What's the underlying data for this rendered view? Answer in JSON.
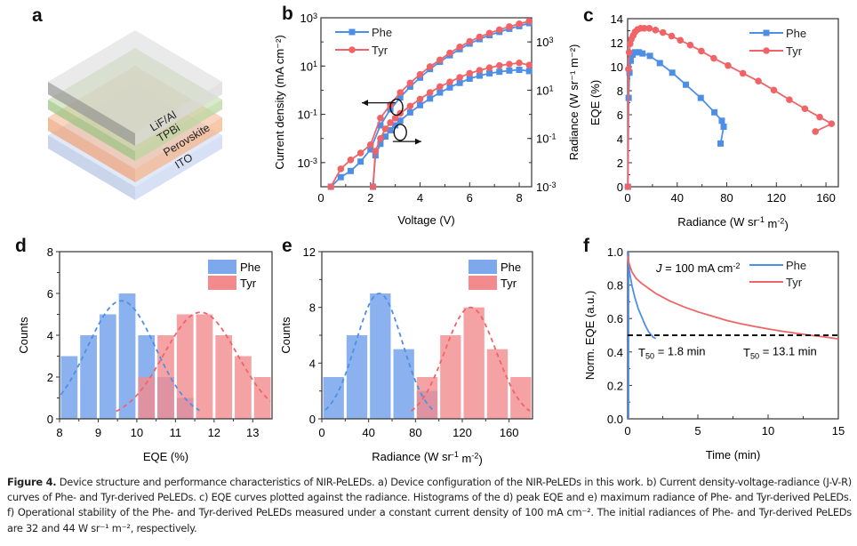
{
  "panels": {
    "a": {
      "letter": "a",
      "layers": [
        {
          "name": "LiF/Al",
          "color": "#d9d9d9"
        },
        {
          "name": "TPBi",
          "color": "#b9d7a0"
        },
        {
          "name": "Perovskite",
          "color": "#f4b58e"
        },
        {
          "name": "ITO",
          "color": "#c9d6f0"
        }
      ]
    },
    "b": {
      "letter": "b"
    },
    "c": {
      "letter": "c"
    },
    "d": {
      "letter": "d"
    },
    "e": {
      "letter": "e"
    },
    "f": {
      "letter": "f"
    }
  },
  "colors": {
    "phe": "#4d8fe6",
    "tyr": "#f06468",
    "phe_fill": "#7ea8ec",
    "tyr_fill": "#f28b8e"
  },
  "chart_data": [
    {
      "id": "b",
      "type": "line",
      "title": "",
      "xlabel": "Voltage (V)",
      "ylabel": "Current density (mA cm⁻²)",
      "y2label": "Radiance (W sr⁻¹ m⁻²)",
      "xlim": [
        0,
        8.5
      ],
      "xticks": [
        0,
        2,
        4,
        6,
        8
      ],
      "ylim_log": [
        -4,
        3
      ],
      "yticks": [
        "10^3",
        "10^1",
        "10^-1",
        "10^-3"
      ],
      "y2lim_log": [
        -3,
        4
      ],
      "y2ticks": [
        "10^3",
        "10^1",
        "10^-1",
        "10^-3"
      ],
      "legend": [
        "Phe",
        "Tyr"
      ],
      "legend_position": "top-left",
      "series": [
        {
          "name": "Phe",
          "axis": "left",
          "marker": "square",
          "x": [
            0.4,
            0.8,
            1.2,
            1.6,
            2.0,
            2.4,
            2.8,
            3.2,
            3.6,
            4.0,
            4.4,
            4.8,
            5.2,
            5.6,
            6.0,
            6.4,
            6.8,
            7.2,
            7.6,
            8.0,
            8.4
          ],
          "y": [
            0.0001,
            0.00025,
            0.00045,
            0.0011,
            0.0035,
            0.035,
            0.16,
            0.5,
            1.4,
            3.3,
            7.5,
            15,
            28,
            50,
            85,
            130,
            190,
            260,
            350,
            450,
            600
          ]
        },
        {
          "name": "Tyr",
          "axis": "left",
          "marker": "circle",
          "x": [
            0.4,
            0.8,
            1.2,
            1.6,
            2.0,
            2.4,
            2.8,
            3.2,
            3.6,
            4.0,
            4.4,
            4.8,
            5.2,
            5.6,
            6.0,
            6.4,
            6.8,
            7.2,
            7.6,
            8.0,
            8.4
          ],
          "y": [
            0.0001,
            0.00055,
            0.0013,
            0.0025,
            0.0055,
            0.07,
            0.25,
            0.8,
            2.0,
            4.5,
            9.5,
            18,
            35,
            62,
            105,
            160,
            230,
            320,
            430,
            560,
            720
          ]
        },
        {
          "name": "Phe",
          "axis": "right",
          "marker": "square",
          "x": [
            2.1,
            2.2,
            2.4,
            2.6,
            2.8,
            3.0,
            3.2,
            3.6,
            4.0,
            4.4,
            4.8,
            5.2,
            5.6,
            6.0,
            6.4,
            6.8,
            7.2,
            7.6,
            8.0,
            8.4
          ],
          "y": [
            0.001,
            0.02,
            0.06,
            0.12,
            0.22,
            0.35,
            0.55,
            1.2,
            2.4,
            4.5,
            8,
            13,
            20,
            30,
            40,
            50,
            58,
            65,
            70,
            62
          ]
        },
        {
          "name": "Tyr",
          "axis": "right",
          "marker": "circle",
          "x": [
            2.1,
            2.2,
            2.4,
            2.6,
            2.8,
            3.0,
            3.2,
            3.6,
            4.0,
            4.4,
            4.8,
            5.2,
            5.6,
            6.0,
            6.4,
            6.8,
            7.2,
            7.6,
            8.0,
            8.4
          ],
          "y": [
            0.001,
            0.03,
            0.1,
            0.25,
            0.45,
            0.7,
            1.1,
            2.2,
            4.3,
            8,
            14,
            22,
            34,
            50,
            67,
            85,
            105,
            120,
            135,
            110
          ]
        }
      ]
    },
    {
      "id": "c",
      "type": "line",
      "xlabel": "Radiance (W sr⁻¹ m⁻²)",
      "ylabel": "EQE (%)",
      "xlim": [
        0,
        170
      ],
      "xticks": [
        0,
        40,
        80,
        120,
        160
      ],
      "ylim": [
        0,
        14
      ],
      "yticks": [
        0,
        2,
        4,
        6,
        8,
        10,
        12,
        14
      ],
      "legend": [
        "Phe",
        "Tyr"
      ],
      "legend_position": "top-right",
      "series": [
        {
          "name": "Phe",
          "marker": "square",
          "x": [
            0.2,
            0.8,
            1.5,
            2.5,
            4,
            6,
            9,
            12,
            18,
            26,
            36,
            47,
            59,
            70,
            76,
            77.5,
            75
          ],
          "y": [
            0,
            7.4,
            9.5,
            10.5,
            11.0,
            11.2,
            11.2,
            11.1,
            10.9,
            10.3,
            9.5,
            8.5,
            7.4,
            6.2,
            5.5,
            5.0,
            3.6
          ]
        },
        {
          "name": "Tyr",
          "marker": "circle",
          "x": [
            0.2,
            0.6,
            1.2,
            2,
            3,
            4.5,
            6,
            8,
            10.5,
            13.5,
            17.5,
            22.5,
            28.5,
            35.5,
            42.5,
            50.5,
            59.5,
            69.5,
            81,
            93,
            105.5,
            118,
            130.5,
            143,
            155,
            164.5,
            151.5
          ],
          "y": [
            0,
            9.8,
            11.2,
            11.9,
            12.3,
            12.6,
            12.9,
            13.1,
            13.2,
            13.2,
            13.2,
            13.05,
            12.85,
            12.55,
            12.2,
            11.8,
            11.3,
            10.7,
            10.1,
            9.45,
            8.8,
            8.05,
            7.25,
            6.5,
            5.8,
            5.25,
            4.6
          ]
        }
      ]
    },
    {
      "id": "d",
      "type": "bar",
      "xlabel": "EQE (%)",
      "ylabel": "Counts",
      "xlim": [
        8,
        13.5
      ],
      "xticks": [
        8,
        9,
        10,
        11,
        12,
        13
      ],
      "ylim": [
        0,
        8
      ],
      "yticks": [
        0,
        2,
        4,
        6,
        8
      ],
      "bin_width": 0.5,
      "legend": [
        "Phe",
        "Tyr"
      ],
      "legend_position": "top-right",
      "series": [
        {
          "name": "Phe",
          "bin_centers": [
            8.25,
            8.75,
            9.25,
            9.75,
            10.25,
            10.75,
            11.25,
            11.75
          ],
          "values": [
            3,
            4,
            5,
            6,
            4,
            2,
            1,
            0
          ],
          "fit": {
            "mean": 9.6,
            "sigma": 0.88,
            "amplitude": 5.65
          }
        },
        {
          "name": "Tyr",
          "bin_centers": [
            10.25,
            10.75,
            11.25,
            11.75,
            12.25,
            12.75,
            13.25
          ],
          "values": [
            2,
            4,
            5,
            5,
            4,
            3,
            2
          ],
          "fit": {
            "mean": 11.65,
            "sigma": 0.95,
            "amplitude": 5.1
          }
        }
      ]
    },
    {
      "id": "e",
      "type": "bar",
      "xlabel": "Radiance (W sr⁻¹ m⁻²)",
      "ylabel": "Counts",
      "xlim": [
        0,
        180
      ],
      "xticks": [
        0,
        40,
        80,
        120,
        160
      ],
      "ylim": [
        0,
        12
      ],
      "yticks": [
        0,
        4,
        8,
        12
      ],
      "bin_width": 20,
      "legend": [
        "Phe",
        "Tyr"
      ],
      "legend_position": "top-right",
      "series": [
        {
          "name": "Phe",
          "bin_centers": [
            10,
            30,
            50,
            70,
            90
          ],
          "values": [
            3,
            6,
            9,
            5,
            2
          ],
          "fit": {
            "mean": 49,
            "sigma": 20,
            "amplitude": 9
          }
        },
        {
          "name": "Tyr",
          "bin_centers": [
            90,
            110,
            130,
            150,
            170
          ],
          "values": [
            3,
            6,
            8,
            5,
            3
          ],
          "fit": {
            "mean": 127,
            "sigma": 22,
            "amplitude": 8
          }
        }
      ]
    },
    {
      "id": "f",
      "type": "line",
      "xlabel": "Time (min)",
      "ylabel": "Norm. EQE (a.u.)",
      "xlim": [
        0,
        15
      ],
      "xticks": [
        0,
        5,
        10,
        15
      ],
      "ylim": [
        0,
        1.0
      ],
      "yticks": [
        0.0,
        0.2,
        0.4,
        0.6,
        0.8,
        1.0
      ],
      "legend": [
        "Phe",
        "Tyr"
      ],
      "legend_position": "top-right",
      "annotations": {
        "condition": "J = 100 mA cm⁻²",
        "reference_line_y": 0.5,
        "phe_t50": "T50 = 1.8 min",
        "tyr_t50": "T50 = 13.1 min"
      },
      "series": [
        {
          "name": "Phe",
          "x": [
            0,
            0.05,
            0.15,
            0.3,
            0.5,
            0.75,
            1.0,
            1.25,
            1.5,
            1.8,
            2.0
          ],
          "y": [
            1.0,
            0.93,
            0.87,
            0.8,
            0.73,
            0.66,
            0.61,
            0.56,
            0.52,
            0.49,
            0.48
          ]
        },
        {
          "name": "Tyr",
          "x": [
            0,
            0.1,
            0.3,
            0.6,
            1,
            2,
            3,
            4,
            5,
            6,
            7,
            8,
            9,
            10,
            11,
            12,
            13,
            14,
            15
          ],
          "y": [
            0.98,
            0.93,
            0.88,
            0.84,
            0.81,
            0.75,
            0.705,
            0.67,
            0.64,
            0.615,
            0.59,
            0.57,
            0.553,
            0.538,
            0.524,
            0.512,
            0.5,
            0.49,
            0.478
          ]
        }
      ]
    }
  ],
  "caption": {
    "label": "Figure 4.",
    "text": " Device structure and performance characteristics of NIR-PeLEDs. a) Device configuration of the NIR-PeLEDs in this work. b) Current density-voltage-radiance (J-V-R) curves of Phe- and Tyr-derived PeLEDs. c) EQE curves plotted against the radiance. Histograms of the d) peak EQE and e) maximum radiance of Phe- and Tyr-derived PeLEDs. f) Operational stability of the Phe- and Tyr-derived PeLEDs measured under a constant current density of 100 mA cm⁻². The initial radiances of Phe- and Tyr-derived PeLEDs are 32 and 44 W sr⁻¹ m⁻², respectively."
  }
}
